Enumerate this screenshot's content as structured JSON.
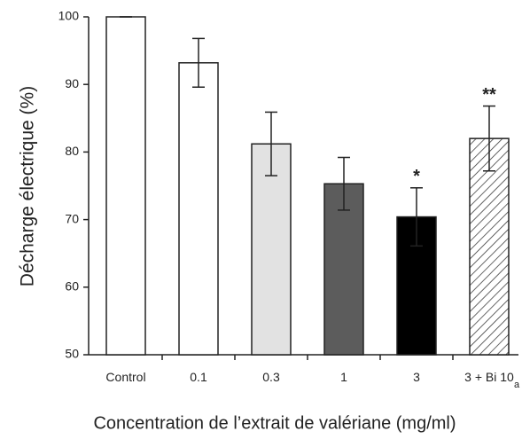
{
  "chart_data": {
    "type": "bar",
    "categories": [
      "Control",
      "0.1",
      "0.3",
      "1",
      "3",
      "3 + Bi 10"
    ],
    "values": [
      100,
      93.2,
      81.2,
      75.3,
      70.4,
      82
    ],
    "errors": [
      0,
      3.6,
      4.7,
      3.9,
      4.3,
      4.8
    ],
    "colors": [
      "#ffffff",
      "#ffffff",
      "#e2e2e2",
      "#5c5c5c",
      "#000000",
      "#ffffff"
    ],
    "hatched": [
      false,
      false,
      false,
      false,
      false,
      true
    ],
    "significance": [
      null,
      null,
      null,
      null,
      "*",
      "**"
    ],
    "footnote_mark": "a",
    "ylabel": "Décharge électrique (%)",
    "xlabel": "Concentration de l’extrait de valériane (mg/ml)",
    "ylim": [
      50,
      100
    ],
    "yticks": [
      50,
      60,
      70,
      80,
      90,
      100
    ]
  }
}
